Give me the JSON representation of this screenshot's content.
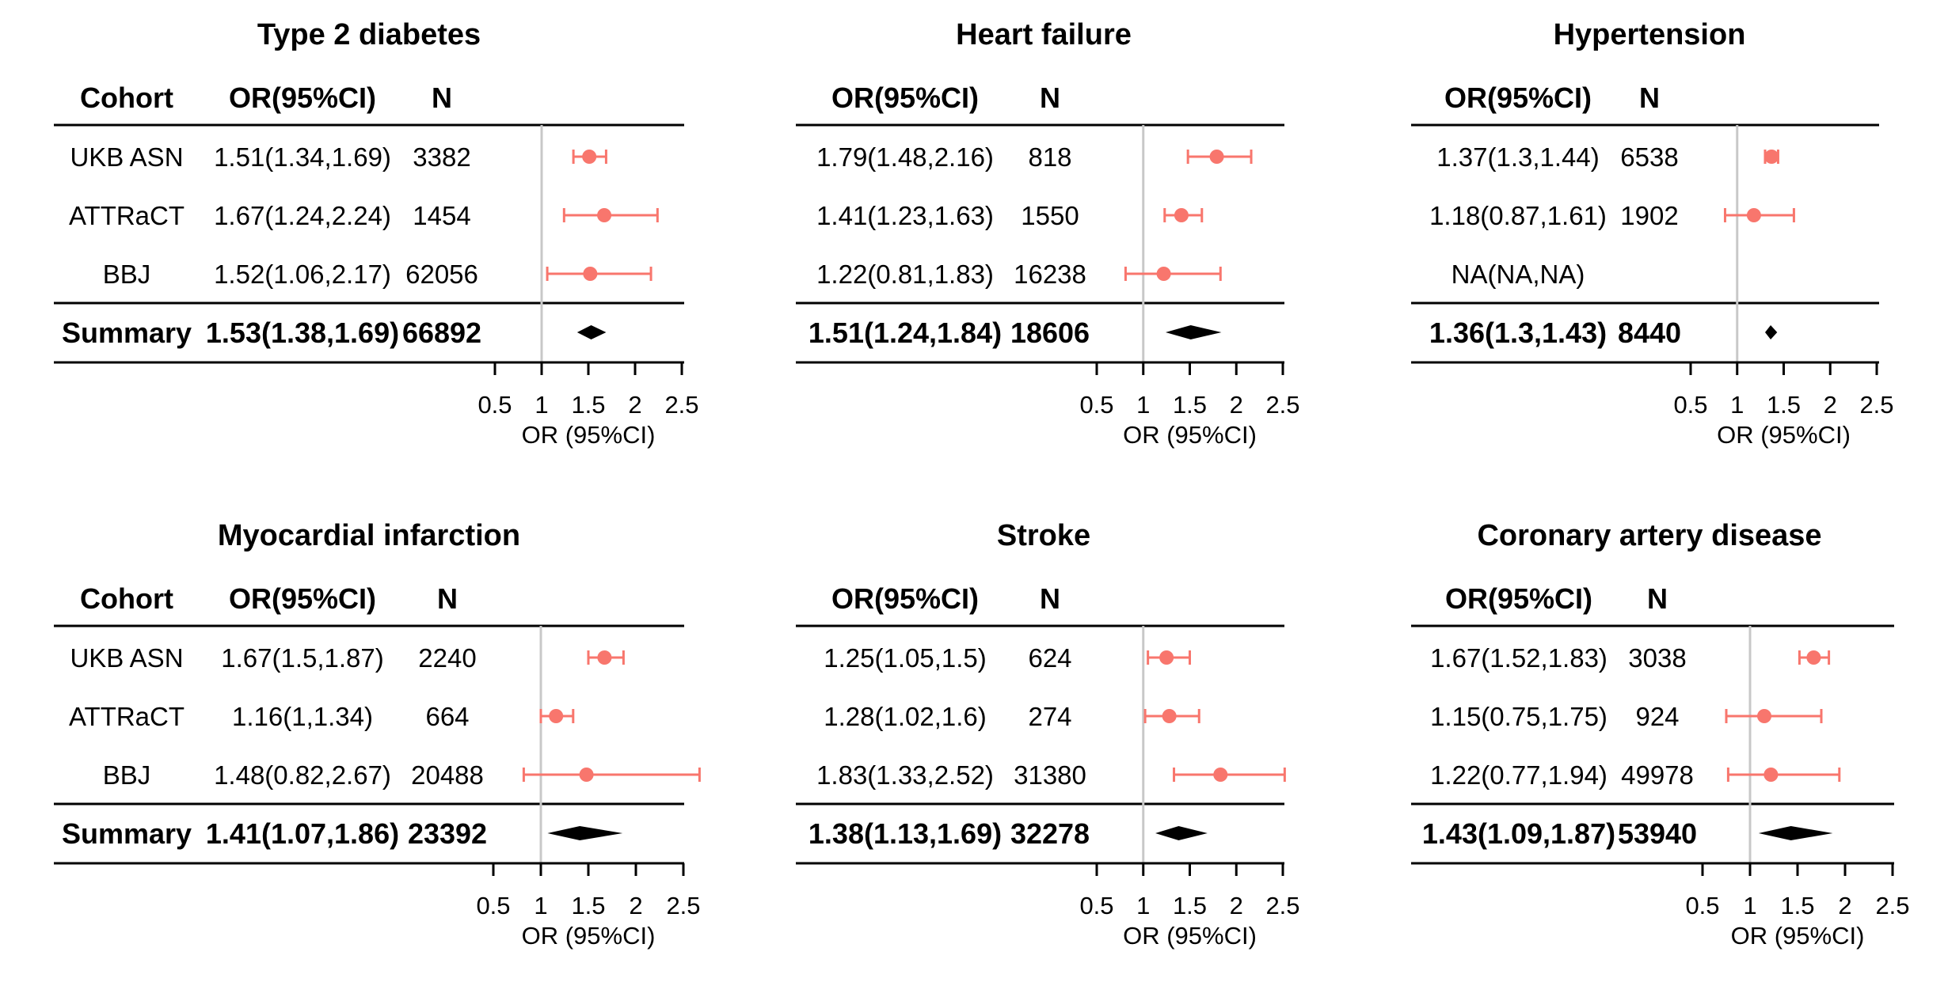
{
  "chart_data": [
    {
      "type": "forest",
      "title": "Type 2 diabetes",
      "columns": [
        "Cohort",
        "OR(95%CI)",
        "N"
      ],
      "rows": [
        {
          "cohort": "UKB ASN",
          "ci_text": "1.51(1.34,1.69)",
          "n": "3382",
          "or": 1.51,
          "lo": 1.34,
          "hi": 1.69
        },
        {
          "cohort": "ATTRaCT",
          "ci_text": "1.67(1.24,2.24)",
          "n": "1454",
          "or": 1.67,
          "lo": 1.24,
          "hi": 2.24
        },
        {
          "cohort": "BBJ",
          "ci_text": "1.52(1.06,2.17)",
          "n": "62056",
          "or": 1.52,
          "lo": 1.06,
          "hi": 2.17
        }
      ],
      "summary": {
        "label": "Summary",
        "ci_text": "1.53(1.38,1.69)",
        "n": "66892",
        "or": 1.53,
        "lo": 1.38,
        "hi": 1.69
      },
      "xlabel": "OR (95%CI)",
      "xlim": [
        0.5,
        2.5
      ],
      "ticks": [
        "0.5",
        "1",
        "1.5",
        "2",
        "2.5"
      ],
      "ref_line": 1
    },
    {
      "type": "forest",
      "title": "Heart failure",
      "columns": [
        "OR(95%CI)",
        "N"
      ],
      "rows": [
        {
          "cohort": "",
          "ci_text": "1.79(1.48,2.16)",
          "n": "818",
          "or": 1.79,
          "lo": 1.48,
          "hi": 2.16
        },
        {
          "cohort": "",
          "ci_text": "1.41(1.23,1.63)",
          "n": "1550",
          "or": 1.41,
          "lo": 1.23,
          "hi": 1.63
        },
        {
          "cohort": "",
          "ci_text": "1.22(0.81,1.83)",
          "n": "16238",
          "or": 1.22,
          "lo": 0.81,
          "hi": 1.83
        }
      ],
      "summary": {
        "label": "",
        "ci_text": "1.51(1.24,1.84)",
        "n": "18606",
        "or": 1.51,
        "lo": 1.24,
        "hi": 1.84
      },
      "xlabel": "OR (95%CI)",
      "xlim": [
        0.5,
        2.5
      ],
      "ticks": [
        "0.5",
        "1",
        "1.5",
        "2",
        "2.5"
      ],
      "ref_line": 1
    },
    {
      "type": "forest",
      "title": "Hypertension",
      "columns": [
        "OR(95%CI)",
        "N"
      ],
      "rows": [
        {
          "cohort": "",
          "ci_text": "1.37(1.3,1.44)",
          "n": "6538",
          "or": 1.37,
          "lo": 1.3,
          "hi": 1.44
        },
        {
          "cohort": "",
          "ci_text": "1.18(0.87,1.61)",
          "n": "1902",
          "or": 1.18,
          "lo": 0.87,
          "hi": 1.61
        },
        {
          "cohort": "",
          "ci_text": "NA(NA,NA)",
          "n": "",
          "or": null,
          "lo": null,
          "hi": null
        }
      ],
      "summary": {
        "label": "",
        "ci_text": "1.36(1.3,1.43)",
        "n": "8440",
        "or": 1.36,
        "lo": 1.3,
        "hi": 1.43
      },
      "xlabel": "OR (95%CI)",
      "xlim": [
        0.5,
        2.5
      ],
      "ticks": [
        "0.5",
        "1",
        "1.5",
        "2",
        "2.5"
      ],
      "ref_line": 1
    },
    {
      "type": "forest",
      "title": "Myocardial infarction",
      "columns": [
        "Cohort",
        "OR(95%CI)",
        "N"
      ],
      "rows": [
        {
          "cohort": "UKB ASN",
          "ci_text": "1.67(1.5,1.87)",
          "n": "2240",
          "or": 1.67,
          "lo": 1.5,
          "hi": 1.87
        },
        {
          "cohort": "ATTRaCT",
          "ci_text": "1.16(1,1.34)",
          "n": "664",
          "or": 1.16,
          "lo": 1.0,
          "hi": 1.34
        },
        {
          "cohort": "BBJ",
          "ci_text": "1.48(0.82,2.67)",
          "n": "20488",
          "or": 1.48,
          "lo": 0.82,
          "hi": 2.67
        }
      ],
      "summary": {
        "label": "Summary",
        "ci_text": "1.41(1.07,1.86)",
        "n": "23392",
        "or": 1.41,
        "lo": 1.07,
        "hi": 1.86
      },
      "xlabel": "OR (95%CI)",
      "xlim": [
        0.5,
        2.5
      ],
      "ticks": [
        "0.5",
        "1",
        "1.5",
        "2",
        "2.5"
      ],
      "ref_line": 1
    },
    {
      "type": "forest",
      "title": "Stroke",
      "columns": [
        "OR(95%CI)",
        "N"
      ],
      "rows": [
        {
          "cohort": "",
          "ci_text": "1.25(1.05,1.5)",
          "n": "624",
          "or": 1.25,
          "lo": 1.05,
          "hi": 1.5
        },
        {
          "cohort": "",
          "ci_text": "1.28(1.02,1.6)",
          "n": "274",
          "or": 1.28,
          "lo": 1.02,
          "hi": 1.6
        },
        {
          "cohort": "",
          "ci_text": "1.83(1.33,2.52)",
          "n": "31380",
          "or": 1.83,
          "lo": 1.33,
          "hi": 2.52
        }
      ],
      "summary": {
        "label": "",
        "ci_text": "1.38(1.13,1.69)",
        "n": "32278",
        "or": 1.38,
        "lo": 1.13,
        "hi": 1.69
      },
      "xlabel": "OR (95%CI)",
      "xlim": [
        0.5,
        2.5
      ],
      "ticks": [
        "0.5",
        "1",
        "1.5",
        "2",
        "2.5"
      ],
      "ref_line": 1
    },
    {
      "type": "forest",
      "title": "Coronary artery disease",
      "columns": [
        "OR(95%CI)",
        "N"
      ],
      "rows": [
        {
          "cohort": "",
          "ci_text": "1.67(1.52,1.83)",
          "n": "3038",
          "or": 1.67,
          "lo": 1.52,
          "hi": 1.83
        },
        {
          "cohort": "",
          "ci_text": "1.15(0.75,1.75)",
          "n": "924",
          "or": 1.15,
          "lo": 0.75,
          "hi": 1.75
        },
        {
          "cohort": "",
          "ci_text": "1.22(0.77,1.94)",
          "n": "49978",
          "or": 1.22,
          "lo": 0.77,
          "hi": 1.94
        }
      ],
      "summary": {
        "label": "",
        "ci_text": "1.43(1.09,1.87)",
        "n": "53940",
        "or": 1.43,
        "lo": 1.09,
        "hi": 1.87
      },
      "xlabel": "OR (95%CI)",
      "xlim": [
        0.5,
        2.5
      ],
      "ticks": [
        "0.5",
        "1",
        "1.5",
        "2",
        "2.5"
      ],
      "ref_line": 1
    }
  ],
  "colors": {
    "point": "#f8766d",
    "ref_line": "#c8c8c8",
    "summary": "#000000"
  }
}
